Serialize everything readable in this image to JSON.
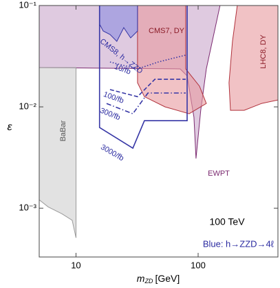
{
  "chart_data": {
    "type": "region",
    "x_label": {
      "symbol": "m",
      "subscript": "ZD",
      "unit": "[GeV]"
    },
    "y_label": "ε",
    "log_x": true,
    "log_y": true,
    "xlim": [
      5,
      450
    ],
    "ylim": [
      0.00033,
      0.1
    ],
    "xticks": [
      10,
      100
    ],
    "yticks": [
      {
        "value": 0.001,
        "label": "10⁻³"
      },
      {
        "value": 0.01,
        "label": "10⁻²"
      },
      {
        "value": 0.1,
        "label": "10⁻¹"
      }
    ],
    "annotations": [
      "100 TeV",
      "Blue: h→ZZD→4ℓ"
    ],
    "series": [
      {
        "name": "EWPT",
        "style": "fill",
        "color": "#c9a6cb",
        "line_color": "#7b2a70",
        "x": [
          5,
          151,
          116.7,
          105,
          96.1,
          92.4,
          81.2,
          71.3,
          5
        ],
        "values": [
          0.1,
          0.1,
          0.0237,
          0.00925,
          0.00309,
          0.0079,
          0.0202,
          0.0237,
          0.0244
        ]
      },
      {
        "name": "BaBar",
        "style": "fill",
        "color": "#cfcfcf",
        "line_color": "#9a9a9a",
        "x": [
          5,
          10,
          10,
          9.31,
          7.67,
          5.92,
          5
        ],
        "values": [
          0.0244,
          0.0244,
          0.00051,
          0.00076,
          0.00088,
          0.00103,
          0.00121
        ]
      },
      {
        "name": "CMS7, DY",
        "style": "fill",
        "color": "#e89a9e",
        "line_color": "#b0303a",
        "x": [
          31.9,
          79.1,
          79.1,
          102.6,
          116.7,
          84.4,
          53.6,
          36.3,
          31.9
        ],
        "values": [
          0.1,
          0.1,
          0.0237,
          0.016,
          0.0108,
          0.00855,
          0.01,
          0.0126,
          0.0173
        ]
      },
      {
        "name": "LHC8, DY",
        "style": "fill",
        "color": "#e89a9e",
        "line_color": "#b0303a",
        "x": [
          209,
          450,
          450,
          330,
          238,
          184,
          179,
          191
        ],
        "values": [
          0.1,
          0.1,
          0.0117,
          0.0108,
          0.00925,
          0.00925,
          0.0173,
          0.0443
        ]
      },
      {
        "name": "CMS8, h→ZZD",
        "style": "fill",
        "color": "#8c8ce0",
        "line_color": "#3535a5",
        "x": [
          15.6,
          31.9,
          31.9,
          28,
          24.6,
          21.6,
          19,
          16.7,
          15.6
        ],
        "values": [
          0.1,
          0.1,
          0.056,
          0.0479,
          0.0605,
          0.0443,
          0.0518,
          0.056,
          0.0655
        ]
      },
      {
        "name": "3000/fb",
        "style": "solid",
        "color": "#3535a5",
        "x": [
          15.6,
          15.6,
          29.2,
          36.3,
          81.2,
          81.2
        ],
        "values": [
          0.1,
          0.00625,
          0.00391,
          0.0073,
          0.0073,
          0.1
        ]
      },
      {
        "name": "300/fb",
        "style": "dashdot",
        "color": "#3535a5",
        "x": [
          17.8,
          29.2,
          38.8,
          79.1
        ],
        "values": [
          0.0108,
          0.00855,
          0.0137,
          0.0137
        ]
      },
      {
        "name": "100/fb",
        "style": "dashed",
        "color": "#3535a5",
        "x": [
          19,
          31.9,
          44.2,
          79.1
        ],
        "values": [
          0.0148,
          0.0126,
          0.0187,
          0.0187
        ]
      },
      {
        "name": "10/fb",
        "style": "dotted",
        "color": "#3535a5",
        "x": [
          19,
          31.9,
          47.1,
          79.1
        ],
        "values": [
          0.0277,
          0.0237,
          0.0277,
          0.0324
        ]
      }
    ]
  }
}
